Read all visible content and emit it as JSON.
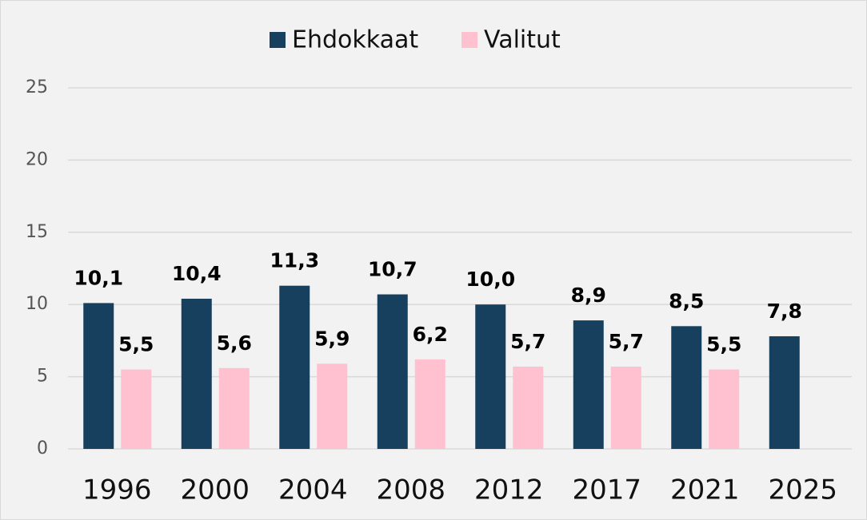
{
  "chart_data": {
    "type": "bar",
    "categories": [
      "1996",
      "2000",
      "2004",
      "2008",
      "2012",
      "2017",
      "2021",
      "2025"
    ],
    "series": [
      {
        "name": "Ehdokkaat",
        "color": "#17405f",
        "values": [
          10.1,
          10.4,
          11.3,
          10.7,
          10.0,
          8.9,
          8.5,
          7.8
        ],
        "value_labels": [
          "10,1",
          "10,4",
          "11,3",
          "10,7",
          "10,0",
          "8,9",
          "8,5",
          "7,8"
        ]
      },
      {
        "name": "Valitut",
        "color": "#ffc0cf",
        "values": [
          5.5,
          5.6,
          5.9,
          6.2,
          5.7,
          5.7,
          5.5,
          null
        ],
        "value_labels": [
          "5,5",
          "5,6",
          "5,9",
          "6,2",
          "5,7",
          "5,7",
          "5,5",
          null
        ]
      }
    ],
    "ylim": [
      0,
      25
    ],
    "yticks": [
      0,
      5,
      10,
      15,
      20,
      25
    ],
    "grid": true,
    "legend": "top"
  }
}
